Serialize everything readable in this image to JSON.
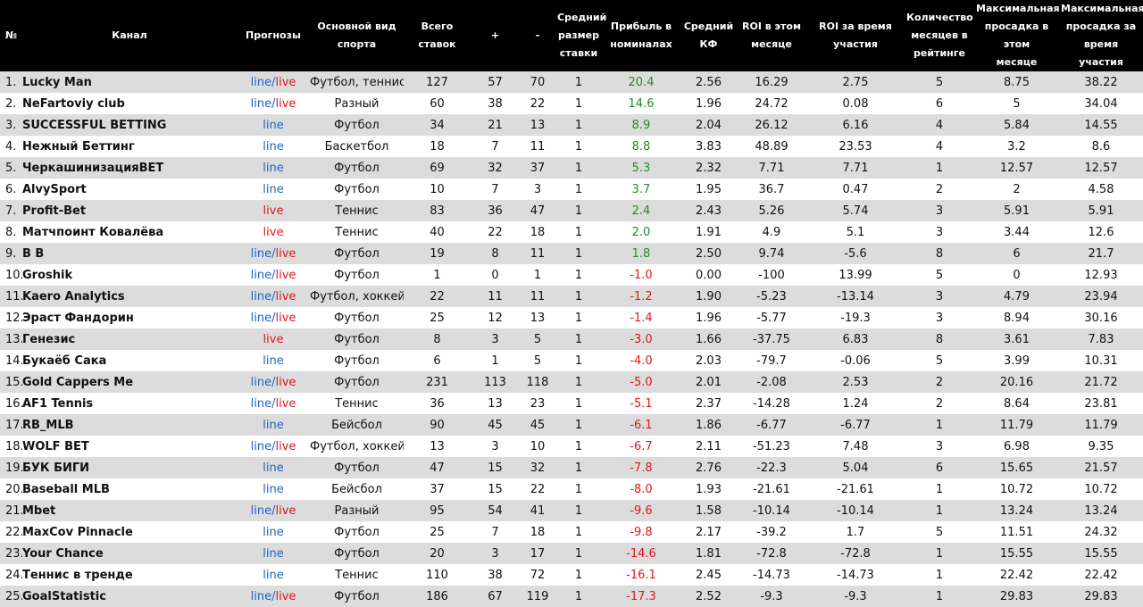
{
  "headers": [
    "№",
    "Канал",
    "Прогнозы",
    "Основной вид\nспорта",
    "Всего ставок",
    "+",
    "-",
    "Средний\nразмер\nставки",
    "Прибыль в\nноминалах",
    "Средний\nКФ",
    "ROI в этом\nмесяце",
    "ROI за время\nучастия",
    "Количество\nмесяцев в\nрейтинге",
    "Максимальная\nпросадка в этом\nмесяце",
    "Максимальная\nпросадка за\nвремя участия"
  ],
  "format_labels": {
    "line": "line",
    "live": "live",
    "sep": "/"
  },
  "colors": {
    "header_bg": "#000000",
    "row_alt": "#dcdcdc",
    "line": "#1e63c6",
    "live": "#e0161c",
    "profit_pos": "#228b22",
    "profit_neg": "#e0161c"
  },
  "rows": [
    {
      "rank": "1.",
      "channel": "Lucky Man",
      "format": "line/live",
      "sport": "Футбол, теннис",
      "total": "127",
      "plus": "57",
      "minus": "70",
      "avg_stake": "1",
      "profit": "20.4",
      "avg_kf": "2.56",
      "roi_month": "16.29",
      "roi_total": "2.75",
      "months": "5",
      "dd_month": "8.75",
      "dd_total": "38.22"
    },
    {
      "rank": "2.",
      "channel": "NeFartoviy club",
      "format": "line/live",
      "sport": "Разный",
      "total": "60",
      "plus": "38",
      "minus": "22",
      "avg_stake": "1",
      "profit": "14.6",
      "avg_kf": "1.96",
      "roi_month": "24.72",
      "roi_total": "0.08",
      "months": "6",
      "dd_month": "5",
      "dd_total": "34.04"
    },
    {
      "rank": "3.",
      "channel": "SUCCESSFUL BETTING",
      "format": "line",
      "sport": "Футбол",
      "total": "34",
      "plus": "21",
      "minus": "13",
      "avg_stake": "1",
      "profit": "8.9",
      "avg_kf": "2.04",
      "roi_month": "26.12",
      "roi_total": "6.16",
      "months": "4",
      "dd_month": "5.84",
      "dd_total": "14.55"
    },
    {
      "rank": "4.",
      "channel": "Нежный Беттинг",
      "format": "line",
      "sport": "Баскетбол",
      "total": "18",
      "plus": "7",
      "minus": "11",
      "avg_stake": "1",
      "profit": "8.8",
      "avg_kf": "3.83",
      "roi_month": "48.89",
      "roi_total": "23.53",
      "months": "4",
      "dd_month": "3.2",
      "dd_total": "8.6"
    },
    {
      "rank": "5.",
      "channel": "ЧеркашинизацияBET",
      "format": "line",
      "sport": "Футбол",
      "total": "69",
      "plus": "32",
      "minus": "37",
      "avg_stake": "1",
      "profit": "5.3",
      "avg_kf": "2.32",
      "roi_month": "7.71",
      "roi_total": "7.71",
      "months": "1",
      "dd_month": "12.57",
      "dd_total": "12.57"
    },
    {
      "rank": "6.",
      "channel": "AlvySport",
      "format": "line",
      "sport": "Футбол",
      "total": "10",
      "plus": "7",
      "minus": "3",
      "avg_stake": "1",
      "profit": "3.7",
      "avg_kf": "1.95",
      "roi_month": "36.7",
      "roi_total": "0.47",
      "months": "2",
      "dd_month": "2",
      "dd_total": "4.58"
    },
    {
      "rank": "7.",
      "channel": "Profit-Bet",
      "format": "live",
      "sport": "Теннис",
      "total": "83",
      "plus": "36",
      "minus": "47",
      "avg_stake": "1",
      "profit": "2.4",
      "avg_kf": "2.43",
      "roi_month": "5.26",
      "roi_total": "5.74",
      "months": "3",
      "dd_month": "5.91",
      "dd_total": "5.91"
    },
    {
      "rank": "8.",
      "channel": "Матчпоинт Ковалёва",
      "format": "live",
      "sport": "Теннис",
      "total": "40",
      "plus": "22",
      "minus": "18",
      "avg_stake": "1",
      "profit": "2.0",
      "avg_kf": "1.91",
      "roi_month": "4.9",
      "roi_total": "5.1",
      "months": "3",
      "dd_month": "3.44",
      "dd_total": "12.6"
    },
    {
      "rank": "9.",
      "channel": "B B",
      "format": "line/live",
      "sport": "Футбол",
      "total": "19",
      "plus": "8",
      "minus": "11",
      "avg_stake": "1",
      "profit": "1.8",
      "avg_kf": "2.50",
      "roi_month": "9.74",
      "roi_total": "-5.6",
      "months": "8",
      "dd_month": "6",
      "dd_total": "21.7"
    },
    {
      "rank": "10.",
      "channel": "Groshik",
      "format": "line/live",
      "sport": "Футбол",
      "total": "1",
      "plus": "0",
      "minus": "1",
      "avg_stake": "1",
      "profit": "-1.0",
      "avg_kf": "0.00",
      "roi_month": "-100",
      "roi_total": "13.99",
      "months": "5",
      "dd_month": "0",
      "dd_total": "12.93"
    },
    {
      "rank": "11.",
      "channel": "Kaero Analytics",
      "format": "line/live",
      "sport": "Футбол, хоккей",
      "total": "22",
      "plus": "11",
      "minus": "11",
      "avg_stake": "1",
      "profit": "-1.2",
      "avg_kf": "1.90",
      "roi_month": "-5.23",
      "roi_total": "-13.14",
      "months": "3",
      "dd_month": "4.79",
      "dd_total": "23.94"
    },
    {
      "rank": "12.",
      "channel": "Эраст Фандорин",
      "format": "line/live",
      "sport": "Футбол",
      "total": "25",
      "plus": "12",
      "minus": "13",
      "avg_stake": "1",
      "profit": "-1.4",
      "avg_kf": "1.96",
      "roi_month": "-5.77",
      "roi_total": "-19.3",
      "months": "3",
      "dd_month": "8.94",
      "dd_total": "30.16"
    },
    {
      "rank": "13.",
      "channel": "Генезис",
      "format": "live",
      "sport": "Футбол",
      "total": "8",
      "plus": "3",
      "minus": "5",
      "avg_stake": "1",
      "profit": "-3.0",
      "avg_kf": "1.66",
      "roi_month": "-37.75",
      "roi_total": "6.83",
      "months": "8",
      "dd_month": "3.61",
      "dd_total": "7.83"
    },
    {
      "rank": "14.",
      "channel": "Букаёб Сака",
      "format": "line",
      "sport": "Футбол",
      "total": "6",
      "plus": "1",
      "minus": "5",
      "avg_stake": "1",
      "profit": "-4.0",
      "avg_kf": "2.03",
      "roi_month": "-79.7",
      "roi_total": "-0.06",
      "months": "5",
      "dd_month": "3.99",
      "dd_total": "10.31"
    },
    {
      "rank": "15.",
      "channel": "Gold Cappers Me",
      "format": "line/live",
      "sport": "Футбол",
      "total": "231",
      "plus": "113",
      "minus": "118",
      "avg_stake": "1",
      "profit": "-5.0",
      "avg_kf": "2.01",
      "roi_month": "-2.08",
      "roi_total": "2.53",
      "months": "2",
      "dd_month": "20.16",
      "dd_total": "21.72"
    },
    {
      "rank": "16.",
      "channel": "AF1 Tennis",
      "format": "line/live",
      "sport": "Теннис",
      "total": "36",
      "plus": "13",
      "minus": "23",
      "avg_stake": "1",
      "profit": "-5.1",
      "avg_kf": "2.37",
      "roi_month": "-14.28",
      "roi_total": "1.24",
      "months": "2",
      "dd_month": "8.64",
      "dd_total": "23.81"
    },
    {
      "rank": "17.",
      "channel": "RB_MLB",
      "format": "line",
      "sport": "Бейсбол",
      "total": "90",
      "plus": "45",
      "minus": "45",
      "avg_stake": "1",
      "profit": "-6.1",
      "avg_kf": "1.86",
      "roi_month": "-6.77",
      "roi_total": "-6.77",
      "months": "1",
      "dd_month": "11.79",
      "dd_total": "11.79"
    },
    {
      "rank": "18.",
      "channel": "WOLF BET",
      "format": "line/live",
      "sport": "Футбол, хоккей",
      "total": "13",
      "plus": "3",
      "minus": "10",
      "avg_stake": "1",
      "profit": "-6.7",
      "avg_kf": "2.11",
      "roi_month": "-51.23",
      "roi_total": "7.48",
      "months": "3",
      "dd_month": "6.98",
      "dd_total": "9.35"
    },
    {
      "rank": "19.",
      "channel": "БУК БИГИ",
      "format": "line",
      "sport": "Футбол",
      "total": "47",
      "plus": "15",
      "minus": "32",
      "avg_stake": "1",
      "profit": "-7.8",
      "avg_kf": "2.76",
      "roi_month": "-22.3",
      "roi_total": "5.04",
      "months": "6",
      "dd_month": "15.65",
      "dd_total": "21.57"
    },
    {
      "rank": "20.",
      "channel": "Baseball MLB",
      "format": "line",
      "sport": "Бейсбол",
      "total": "37",
      "plus": "15",
      "minus": "22",
      "avg_stake": "1",
      "profit": "-8.0",
      "avg_kf": "1.93",
      "roi_month": "-21.61",
      "roi_total": "-21.61",
      "months": "1",
      "dd_month": "10.72",
      "dd_total": "10.72"
    },
    {
      "rank": "21.",
      "channel": "Mbet",
      "format": "line/live",
      "sport": "Разный",
      "total": "95",
      "plus": "54",
      "minus": "41",
      "avg_stake": "1",
      "profit": "-9.6",
      "avg_kf": "1.58",
      "roi_month": "-10.14",
      "roi_total": "-10.14",
      "months": "1",
      "dd_month": "13.24",
      "dd_total": "13.24"
    },
    {
      "rank": "22.",
      "channel": "MaxCov Pinnacle",
      "format": "line",
      "sport": "Футбол",
      "total": "25",
      "plus": "7",
      "minus": "18",
      "avg_stake": "1",
      "profit": "-9.8",
      "avg_kf": "2.17",
      "roi_month": "-39.2",
      "roi_total": "1.7",
      "months": "5",
      "dd_month": "11.51",
      "dd_total": "24.32"
    },
    {
      "rank": "23.",
      "channel": "Your Chance",
      "format": "line",
      "sport": "Футбол",
      "total": "20",
      "plus": "3",
      "minus": "17",
      "avg_stake": "1",
      "profit": "-14.6",
      "avg_kf": "1.81",
      "roi_month": "-72.8",
      "roi_total": "-72.8",
      "months": "1",
      "dd_month": "15.55",
      "dd_total": "15.55"
    },
    {
      "rank": "24.",
      "channel": "Теннис в тренде",
      "format": "line",
      "sport": "Теннис",
      "total": "110",
      "plus": "38",
      "minus": "72",
      "avg_stake": "1",
      "profit": "-16.1",
      "avg_kf": "2.45",
      "roi_month": "-14.73",
      "roi_total": "-14.73",
      "months": "1",
      "dd_month": "22.42",
      "dd_total": "22.42"
    },
    {
      "rank": "25.",
      "channel": "GoalStatistic",
      "format": "line/live",
      "sport": "Футбол",
      "total": "186",
      "plus": "67",
      "minus": "119",
      "avg_stake": "1",
      "profit": "-17.3",
      "avg_kf": "2.52",
      "roi_month": "-9.3",
      "roi_total": "-9.3",
      "months": "1",
      "dd_month": "29.83",
      "dd_total": "29.83"
    }
  ]
}
